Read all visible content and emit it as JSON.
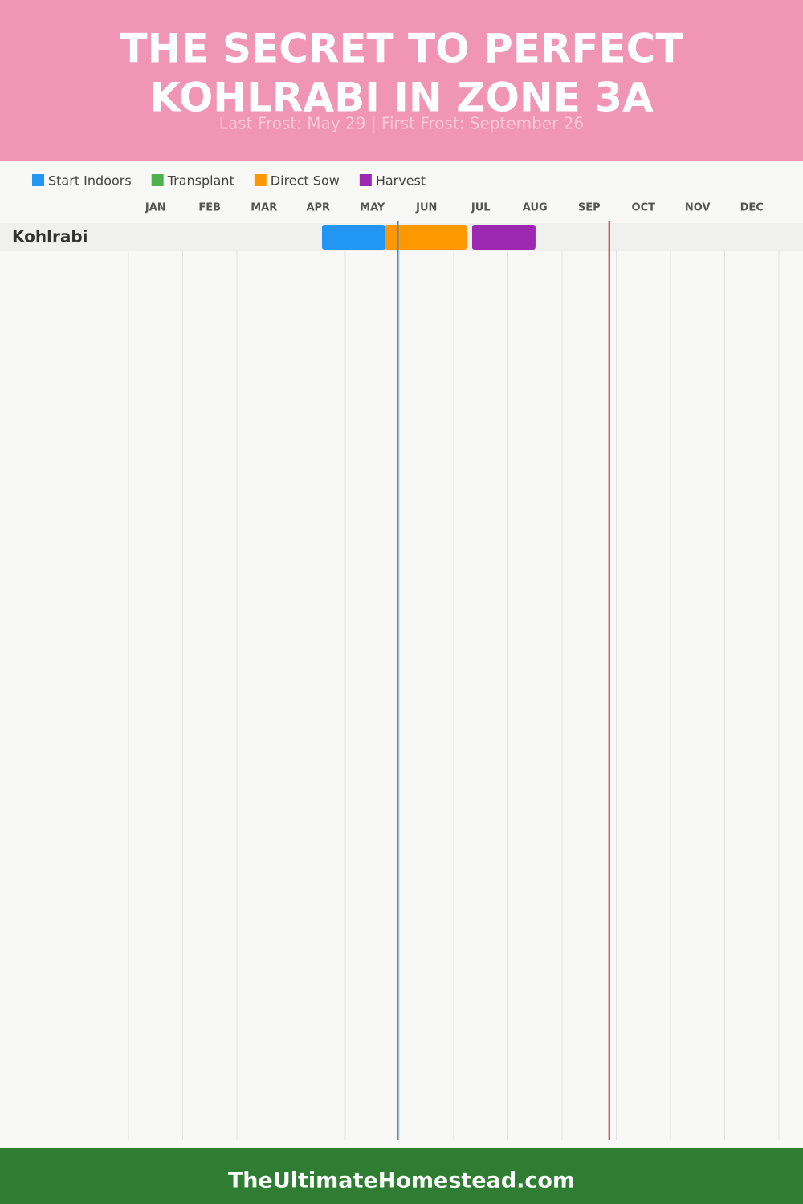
{
  "header": {
    "title_lines": [
      "THE SECRET TO PERFECT",
      "KOHLRABI IN ZONE 3A"
    ],
    "subtitle": "Last Frost: May 29 | First Frost: September 26"
  },
  "chart_data": {
    "type": "gantt",
    "categories": [
      "JAN",
      "FEB",
      "MAR",
      "APR",
      "MAY",
      "JUN",
      "JUL",
      "AUG",
      "SEP",
      "OCT",
      "NOV",
      "DEC"
    ],
    "xlim": [
      0,
      12
    ],
    "rows": [
      "Kohlrabi"
    ],
    "series": [
      {
        "name": "Start Indoors",
        "color": "#2196f3",
        "ranges": [
          [
            3.57,
            4.74
          ]
        ]
      },
      {
        "name": "Transplant",
        "color": "#4caf50",
        "ranges": []
      },
      {
        "name": "Direct Sow",
        "color": "#ff9800",
        "ranges": [
          [
            4.73,
            6.24
          ]
        ]
      },
      {
        "name": "Harvest",
        "color": "#9c27b0",
        "ranges": [
          [
            6.34,
            7.51
          ]
        ]
      }
    ],
    "markers": [
      {
        "value": 4.97,
        "color": "#3a8fd0"
      },
      {
        "value": 8.87,
        "color": "#b22222"
      }
    ]
  },
  "footer": {
    "text": "TheUltimateHomestead.com"
  }
}
